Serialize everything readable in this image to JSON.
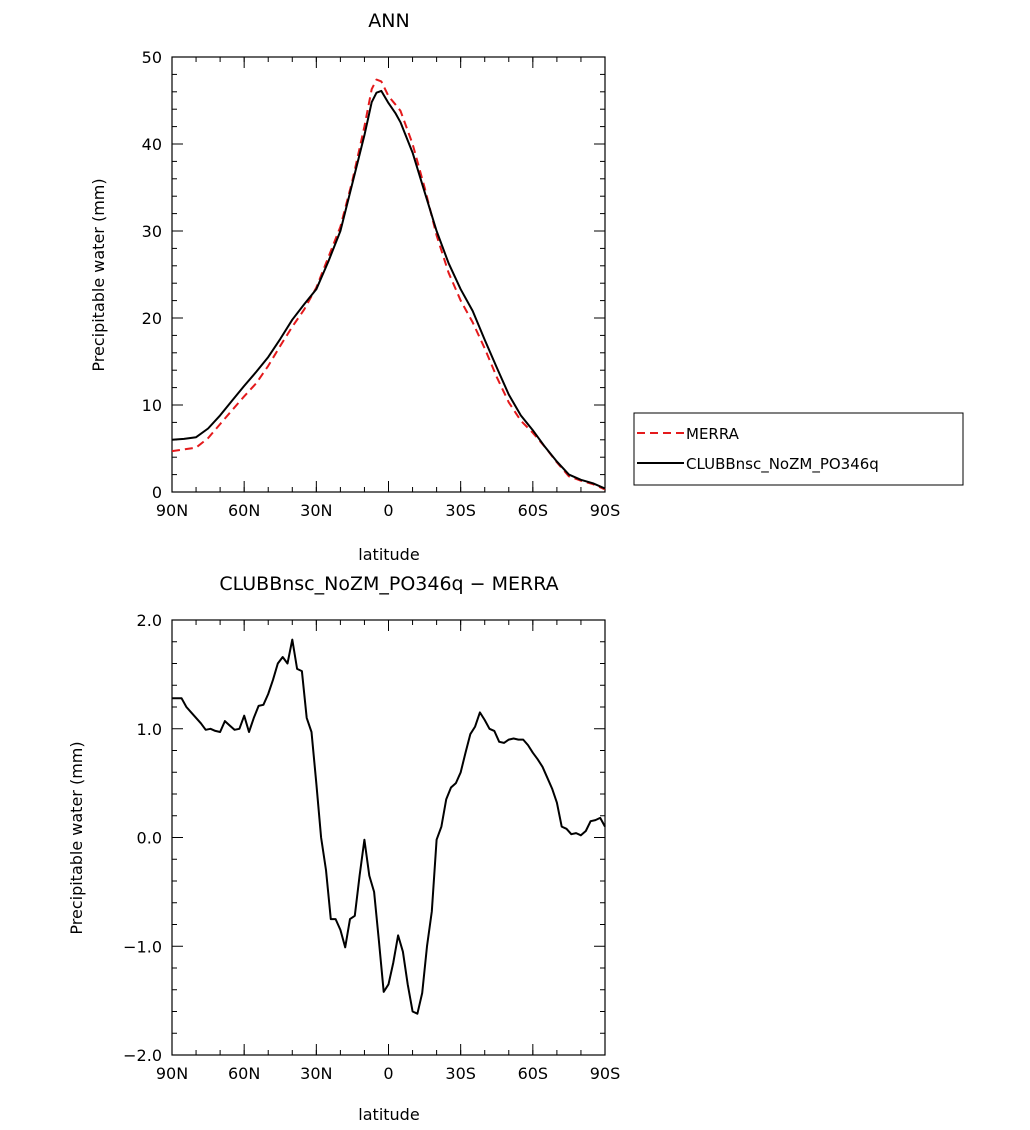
{
  "chart_data": [
    {
      "type": "line",
      "title": "ANN",
      "xlabel": "latitude",
      "ylabel": "Precipitable water (mm)",
      "xlim": [
        -90,
        90
      ],
      "ylim": [
        0,
        50
      ],
      "x_tick_values": [
        -90,
        -60,
        -30,
        0,
        30,
        60,
        90
      ],
      "x_tick_labels": [
        "90N",
        "60N",
        "30N",
        "0",
        "30S",
        "60S",
        "90S"
      ],
      "y_tick_values": [
        0,
        10,
        20,
        30,
        40,
        50
      ],
      "y_tick_labels": [
        "0",
        "10",
        "20",
        "30",
        "40",
        "50"
      ],
      "legend_position": "right",
      "series": [
        {
          "name": "MERRA",
          "color": "#e41a1c",
          "dash": "dashed",
          "x": [
            -90,
            -85,
            -80,
            -75,
            -70,
            -65,
            -60,
            -55,
            -50,
            -45,
            -40,
            -35,
            -30,
            -25,
            -20,
            -15,
            -10,
            -7,
            -5,
            -3,
            0,
            3,
            5,
            10,
            15,
            20,
            25,
            30,
            35,
            40,
            45,
            50,
            55,
            60,
            65,
            70,
            75,
            80,
            85,
            90
          ],
          "y": [
            4.7,
            4.9,
            5.1,
            6.2,
            7.8,
            9.4,
            11.0,
            12.5,
            14.5,
            16.8,
            19.0,
            21.0,
            23.5,
            27.0,
            30.5,
            35.8,
            42.0,
            46.3,
            47.4,
            47.2,
            45.5,
            44.5,
            43.8,
            40.0,
            35.0,
            29.5,
            25.2,
            22.0,
            19.5,
            16.5,
            13.2,
            10.3,
            8.2,
            6.8,
            5.2,
            3.4,
            1.8,
            1.3,
            0.9,
            0.3
          ]
        },
        {
          "name": "CLUBBnsc_NoZM_PO346q",
          "color": "#000000",
          "dash": "solid",
          "x": [
            -90,
            -85,
            -80,
            -75,
            -70,
            -65,
            -60,
            -55,
            -50,
            -45,
            -40,
            -35,
            -30,
            -25,
            -20,
            -15,
            -10,
            -7,
            -5,
            -3,
            0,
            3,
            5,
            10,
            15,
            20,
            25,
            30,
            35,
            40,
            45,
            50,
            55,
            60,
            65,
            70,
            75,
            80,
            85,
            90
          ],
          "y": [
            6.0,
            6.1,
            6.3,
            7.3,
            8.8,
            10.5,
            12.2,
            13.8,
            15.5,
            17.6,
            19.8,
            21.6,
            23.3,
            26.5,
            30.0,
            35.5,
            41.0,
            44.8,
            45.9,
            46.1,
            44.7,
            43.5,
            42.5,
            39.0,
            34.5,
            30.0,
            26.3,
            23.3,
            20.8,
            17.5,
            14.3,
            11.2,
            8.8,
            7.1,
            5.2,
            3.5,
            2.0,
            1.4,
            1.0,
            0.4
          ]
        }
      ]
    },
    {
      "type": "line",
      "title": "CLUBBnsc_NoZM_PO346q − MERRA",
      "xlabel": "latitude",
      "ylabel": "Precipitable water (mm)",
      "xlim": [
        -90,
        90
      ],
      "ylim": [
        -2,
        2
      ],
      "x_tick_values": [
        -90,
        -60,
        -30,
        0,
        30,
        60,
        90
      ],
      "x_tick_labels": [
        "90N",
        "60N",
        "30N",
        "0",
        "30S",
        "60S",
        "90S"
      ],
      "y_tick_values": [
        -2,
        -1,
        0,
        1,
        2
      ],
      "y_tick_labels": [
        "−2.0",
        "−1.0",
        "0.0",
        "1.0",
        "2.0"
      ],
      "series": [
        {
          "color": "#000000",
          "dash": "solid",
          "x": [
            -90,
            -87,
            -86,
            -84,
            -82,
            -80,
            -78,
            -76,
            -74,
            -72,
            -70,
            -68,
            -66,
            -64,
            -62,
            -60,
            -58,
            -56,
            -54,
            -52,
            -50,
            -48,
            -46,
            -44,
            -42,
            -40,
            -38,
            -36,
            -34,
            -32,
            -30,
            -28,
            -26,
            -24,
            -22,
            -20,
            -18,
            -16,
            -14,
            -12,
            -10,
            -8,
            -6,
            -4,
            -2,
            0,
            2,
            4,
            6,
            8,
            10,
            12,
            14,
            16,
            18,
            20,
            22,
            24,
            26,
            28,
            30,
            32,
            34,
            36,
            38,
            40,
            42,
            44,
            46,
            48,
            50,
            52,
            54,
            56,
            58,
            60,
            62,
            64,
            66,
            68,
            70,
            72,
            74,
            76,
            78,
            80,
            82,
            84,
            86,
            88,
            90
          ],
          "y": [
            1.28,
            1.28,
            1.28,
            1.2,
            1.15,
            1.1,
            1.05,
            0.99,
            1.0,
            0.98,
            0.97,
            1.07,
            1.03,
            0.99,
            1.0,
            1.12,
            0.97,
            1.1,
            1.21,
            1.22,
            1.32,
            1.45,
            1.6,
            1.66,
            1.6,
            1.82,
            1.55,
            1.53,
            1.1,
            0.97,
            0.5,
            0.0,
            -0.3,
            -0.75,
            -0.75,
            -0.85,
            -1.01,
            -0.75,
            -0.72,
            -0.35,
            -0.02,
            -0.35,
            -0.5,
            -0.95,
            -1.42,
            -1.35,
            -1.15,
            -0.9,
            -1.05,
            -1.35,
            -1.6,
            -1.62,
            -1.43,
            -1.0,
            -0.68,
            -0.02,
            0.1,
            0.35,
            0.46,
            0.5,
            0.6,
            0.78,
            0.95,
            1.02,
            1.15,
            1.08,
            1.0,
            0.98,
            0.88,
            0.87,
            0.9,
            0.91,
            0.9,
            0.9,
            0.85,
            0.78,
            0.72,
            0.65,
            0.55,
            0.45,
            0.32,
            0.1,
            0.08,
            0.03,
            0.04,
            0.02,
            0.06,
            0.15,
            0.16,
            0.18,
            0.1
          ]
        }
      ]
    }
  ]
}
